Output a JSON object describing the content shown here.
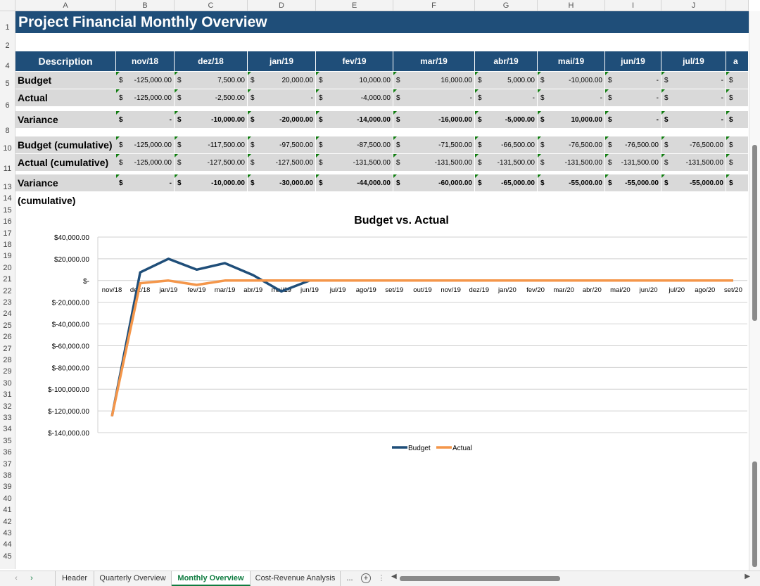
{
  "columns": [
    "A",
    "B",
    "C",
    "D",
    "E",
    "F",
    "G",
    "H",
    "I",
    "J"
  ],
  "rows": [
    "1",
    "2",
    "4",
    "5",
    "6",
    "8",
    "10",
    "11",
    "13",
    "14",
    "15",
    "16",
    "17",
    "18",
    "19",
    "20",
    "21",
    "22",
    "23",
    "24",
    "25",
    "26",
    "27",
    "28",
    "29",
    "30",
    "31",
    "32",
    "33",
    "34",
    "35",
    "36",
    "37",
    "38",
    "39",
    "40",
    "41",
    "42",
    "43",
    "44",
    "45"
  ],
  "title": "Project Financial Monthly Overview",
  "table": {
    "desc_header": "Description",
    "months": [
      "nov/18",
      "dez/18",
      "jan/19",
      "fev/19",
      "mar/19",
      "abr/19",
      "mai/19",
      "jun/19",
      "jul/19",
      "a"
    ],
    "currency": "$",
    "rows": [
      {
        "label": "Budget",
        "bold": false,
        "values": [
          "-125,000.00",
          "7,500.00",
          "20,000.00",
          "10,000.00",
          "16,000.00",
          "5,000.00",
          "-10,000.00",
          "-",
          "-",
          ""
        ]
      },
      {
        "label": "Actual",
        "bold": false,
        "values": [
          "-125,000.00",
          "-2,500.00",
          "-",
          "-4,000.00",
          "-",
          "-",
          "-",
          "-",
          "-",
          ""
        ]
      },
      {
        "label": "Variance",
        "bold": true,
        "values": [
          "-",
          "-10,000.00",
          "-20,000.00",
          "-14,000.00",
          "-16,000.00",
          "-5,000.00",
          "10,000.00",
          "-",
          "-",
          ""
        ]
      },
      {
        "label": "Budget (cumulative)",
        "bold": false,
        "values": [
          "-125,000.00",
          "-117,500.00",
          "-97,500.00",
          "-87,500.00",
          "-71,500.00",
          "-66,500.00",
          "-76,500.00",
          "-76,500.00",
          "-76,500.00",
          ""
        ]
      },
      {
        "label": "Actual (cumulative)",
        "bold": false,
        "values": [
          "-125,000.00",
          "-127,500.00",
          "-127,500.00",
          "-131,500.00",
          "-131,500.00",
          "-131,500.00",
          "-131,500.00",
          "-131,500.00",
          "-131,500.00",
          ""
        ]
      },
      {
        "label": "Variance (cumulative)",
        "bold": true,
        "values": [
          "-",
          "-10,000.00",
          "-30,000.00",
          "-44,000.00",
          "-60,000.00",
          "-65,000.00",
          "-55,000.00",
          "-55,000.00",
          "-55,000.00",
          ""
        ]
      }
    ]
  },
  "chart_data": {
    "type": "line",
    "title": "Budget vs. Actual",
    "categories": [
      "nov/18",
      "dez/18",
      "jan/19",
      "fev/19",
      "mar/19",
      "abr/19",
      "mai/19",
      "jun/19",
      "jul/19",
      "ago/19",
      "set/19",
      "out/19",
      "nov/19",
      "dez/19",
      "jan/20",
      "fev/20",
      "mar/20",
      "abr/20",
      "mai/20",
      "jun/20",
      "jul/20",
      "ago/20",
      "set/20"
    ],
    "y_tick_labels": [
      "$40,000.00",
      "$20,000.00",
      "$-",
      "$-20,000.00",
      "$-40,000.00",
      "$-60,000.00",
      "$-80,000.00",
      "$-100,000.00",
      "$-120,000.00",
      "$-140,000.00"
    ],
    "ylim": [
      -140000,
      40000
    ],
    "grid": true,
    "legend": "bottom",
    "series": [
      {
        "name": "Budget",
        "color": "#1f4e79",
        "values": [
          -125000,
          7500,
          20000,
          10000,
          16000,
          5000,
          -10000,
          0,
          0,
          0,
          0,
          0,
          0,
          0,
          0,
          0,
          0,
          0,
          0,
          0,
          0,
          0,
          0
        ]
      },
      {
        "name": "Actual",
        "color": "#f4964a",
        "values": [
          -125000,
          -2500,
          0,
          -4000,
          0,
          0,
          0,
          0,
          0,
          0,
          0,
          0,
          0,
          0,
          0,
          0,
          0,
          0,
          0,
          0,
          0,
          0,
          0
        ]
      }
    ]
  },
  "tabs": {
    "items": [
      "Header",
      "Quarterly Overview",
      "Monthly Overview",
      "Cost-Revenue Analysis"
    ],
    "active": "Monthly Overview",
    "more": "...",
    "add": "+"
  }
}
